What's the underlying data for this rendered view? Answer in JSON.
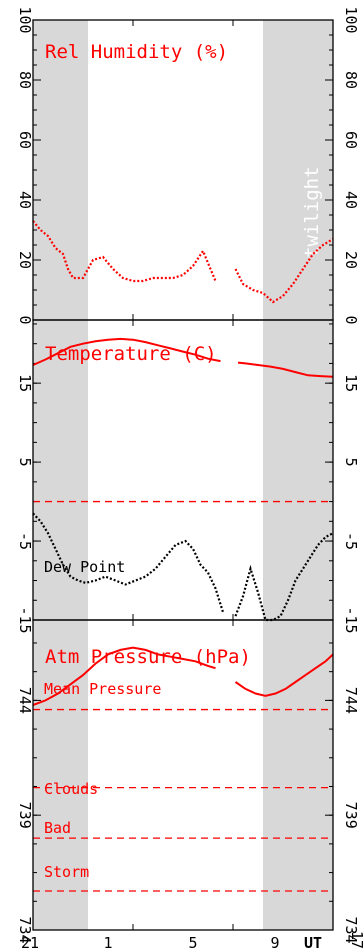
{
  "colors": {
    "red": "#ff0000",
    "black": "#000000",
    "twilight": "#d8d8d8",
    "twilight_text": "#ffffff"
  },
  "x_axis": {
    "tick_labels": [
      "21",
      "1",
      "5",
      "9",
      "UT",
      "17"
    ],
    "unit_label": "UT",
    "range": [
      21,
      33
    ]
  },
  "twilight_label": "twilight",
  "twilight_bands": [
    [
      21,
      23.2
    ],
    [
      30.2,
      33
    ]
  ],
  "chart_data": [
    {
      "type": "line",
      "title": "Rel Humidity (%)",
      "yticks": [
        "0",
        "20",
        "40",
        "60",
        "80",
        "100"
      ],
      "ylim": [
        0,
        100
      ],
      "series": [
        {
          "style": "dotted",
          "color": "#ff0000",
          "x": [
            21,
            21.3,
            21.6,
            21.9,
            22.2,
            22.4,
            22.6,
            23.0,
            23.4,
            23.8,
            24.2,
            24.6,
            25.0,
            25.4,
            25.8,
            26.2,
            26.6,
            27.0,
            27.4,
            27.8,
            28.1,
            28.3,
            28.8,
            29.1,
            29.4,
            29.8,
            30.2,
            30.6,
            31.0,
            31.4,
            31.8,
            32.2,
            32.6,
            33.0
          ],
          "y": [
            33,
            30,
            28,
            24,
            22,
            17,
            14,
            14,
            20,
            21,
            17,
            14,
            13,
            13,
            14,
            14,
            14,
            15,
            18,
            23,
            17,
            13,
            null,
            17,
            12,
            10,
            9,
            6,
            8,
            12,
            17,
            22,
            25,
            27
          ]
        }
      ]
    },
    {
      "type": "line",
      "title": "Temperature (C)",
      "yticks": [
        "-15",
        "-5",
        "5",
        "15"
      ],
      "ylim": [
        -15,
        23
      ],
      "annotations": [
        {
          "text": "Dew Point",
          "color": "#000000"
        }
      ],
      "series": [
        {
          "style": "solid",
          "color": "#ff0000",
          "x": [
            21,
            21.5,
            22,
            22.5,
            23,
            23.5,
            24,
            24.5,
            25,
            25.5,
            26,
            26.5,
            27,
            27.5,
            28,
            28.5,
            28.9,
            29.2,
            29.5,
            30,
            30.5,
            31,
            31.5,
            32,
            32.5,
            33
          ],
          "y": [
            17.3,
            18.0,
            18.8,
            19.6,
            20.0,
            20.3,
            20.5,
            20.6,
            20.5,
            20.2,
            19.8,
            19.4,
            19.0,
            18.6,
            18.1,
            17.8,
            null,
            17.6,
            17.5,
            17.3,
            17.1,
            16.8,
            16.4,
            16.0,
            15.9,
            15.8
          ]
        },
        {
          "style": "dotted",
          "color": "#000000",
          "x": [
            21,
            21.3,
            21.6,
            21.9,
            22.2,
            22.5,
            22.8,
            23.1,
            23.5,
            23.9,
            24.3,
            24.7,
            25.1,
            25.5,
            25.9,
            26.3,
            26.7,
            27.1,
            27.4,
            27.7,
            28.0,
            28.3,
            28.6,
            28.9,
            29.1,
            29.4,
            29.7,
            30.0,
            30.3,
            30.6,
            30.9,
            31.2,
            31.5,
            31.8,
            32.1,
            32.4,
            32.7,
            33.0
          ],
          "y": [
            -1.5,
            -2.5,
            -4.0,
            -6.0,
            -8.0,
            -9.5,
            -10.0,
            -10.3,
            -10.0,
            -9.5,
            -10.0,
            -10.5,
            -10.0,
            -9.5,
            -8.5,
            -7.0,
            -5.5,
            -5.0,
            -6.0,
            -8.0,
            -9.0,
            -11.0,
            -14.0,
            null,
            -14.5,
            -12.0,
            -8.5,
            -11.5,
            -15.0,
            -15.0,
            -14.5,
            -12.5,
            -10.0,
            -8.5,
            -7.0,
            -5.5,
            -4.5,
            -4.0
          ]
        }
      ],
      "reference_lines": [
        {
          "y": 0,
          "style": "dashed",
          "color": "#ff0000"
        }
      ]
    },
    {
      "type": "line",
      "title": "Atm Pressure (hPa)",
      "yticks": [
        "734",
        "739",
        "744"
      ],
      "ylim": [
        734,
        747.5
      ],
      "series": [
        {
          "style": "solid",
          "color": "#ff0000",
          "x": [
            21,
            21.5,
            22,
            22.5,
            23,
            23.5,
            24,
            24.5,
            25,
            25.5,
            26,
            26.5,
            27,
            27.5,
            28,
            28.3,
            28.8,
            29.1,
            29.5,
            29.9,
            30.3,
            30.7,
            31.1,
            31.5,
            31.9,
            32.3,
            32.7,
            33.0
          ],
          "y": [
            743.8,
            744.0,
            744.3,
            744.7,
            745.1,
            745.6,
            746.0,
            746.2,
            746.3,
            746.2,
            746.0,
            745.9,
            745.8,
            745.7,
            745.5,
            745.4,
            null,
            744.8,
            744.5,
            744.3,
            744.2,
            744.3,
            744.5,
            744.8,
            745.1,
            745.4,
            745.7,
            746.0
          ]
        }
      ],
      "reference_lines": [
        {
          "label": "Mean Pressure",
          "y": 743.6,
          "style": "dashed",
          "color": "#ff0000"
        },
        {
          "label": "Clouds",
          "y": 740.2,
          "style": "dashed",
          "color": "#ff0000"
        },
        {
          "label": "Bad",
          "y": 738.0,
          "style": "dashed",
          "color": "#ff0000"
        },
        {
          "label": "Storm",
          "y": 735.7,
          "style": "dashed",
          "color": "#ff0000"
        }
      ]
    }
  ]
}
